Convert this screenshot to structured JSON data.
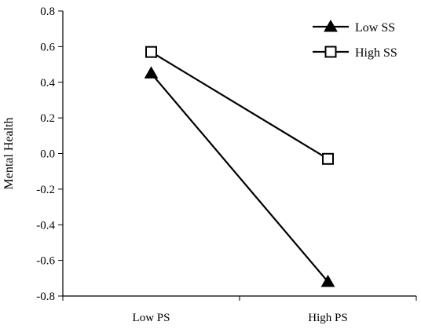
{
  "chart_data": {
    "type": "line",
    "title": "",
    "xlabel": "",
    "ylabel": "Mental Health",
    "categories": [
      "Low PS",
      "High PS"
    ],
    "ylim": [
      -0.8,
      0.8
    ],
    "yticks": [
      0.8,
      0.6,
      0.4,
      0.2,
      0.0,
      -0.2,
      -0.4,
      -0.6,
      -0.8
    ],
    "ytick_labels": [
      "0.8",
      "0.6",
      "0.4",
      "0.2",
      "0.0",
      "-0.2",
      "-0.4",
      "-0.6",
      "-0.8"
    ],
    "grid": false,
    "legend_position": "top-right",
    "series": [
      {
        "name": "Low SS",
        "marker": "filled-triangle",
        "color": "#000000",
        "values": [
          0.45,
          -0.72
        ]
      },
      {
        "name": "High SS",
        "marker": "open-square",
        "color": "#000000",
        "values": [
          0.57,
          -0.03
        ]
      }
    ]
  }
}
